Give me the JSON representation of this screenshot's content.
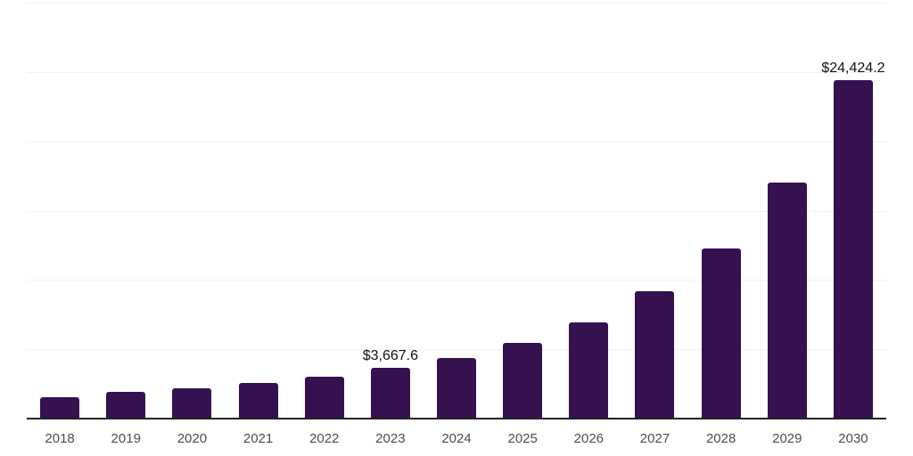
{
  "chart_data": {
    "type": "bar",
    "title": "",
    "xlabel": "",
    "ylabel": "",
    "categories": [
      "2018",
      "2019",
      "2020",
      "2021",
      "2022",
      "2023",
      "2024",
      "2025",
      "2026",
      "2027",
      "2028",
      "2029",
      "2030"
    ],
    "values": [
      1520,
      1950,
      2160,
      2590,
      3020,
      3667.6,
      4400,
      5480,
      6970,
      9210,
      12280,
      17000,
      24424.2
    ],
    "data_labels": [
      null,
      null,
      null,
      null,
      null,
      "$3,667.6",
      null,
      null,
      null,
      null,
      null,
      null,
      "$24,424.2"
    ],
    "ylim": [
      0,
      30000
    ],
    "gridline_step": 5000,
    "grid": "horizontal",
    "legend_position": "none",
    "colors": {
      "bar": "#351150",
      "gridline": "#f2f2f2",
      "axis_line": "#222222",
      "tick_label": "#4d4d4d",
      "data_label": "#111111",
      "background": "#ffffff"
    }
  }
}
